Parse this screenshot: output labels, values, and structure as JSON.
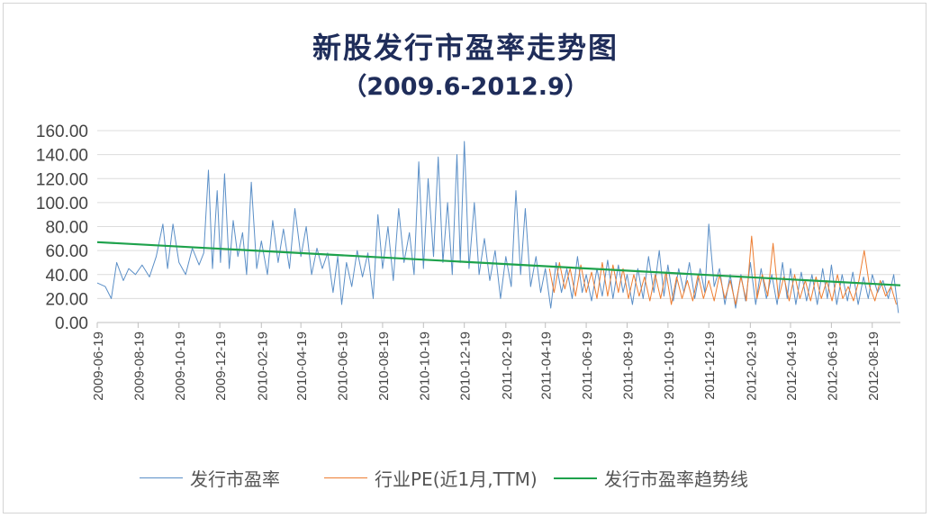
{
  "chart_data": {
    "type": "line",
    "title": "新股发行市盈率走势图",
    "subtitle": "（2009.6-2012.9）",
    "xlabel": "",
    "ylabel": "",
    "ylim": [
      0,
      160
    ],
    "yticks": [
      "0.00",
      "20.00",
      "40.00",
      "60.00",
      "80.00",
      "100.00",
      "120.00",
      "140.00",
      "160.00"
    ],
    "xlim": [
      "2009-06-19",
      "2012-09-30"
    ],
    "xticks": [
      "2009-06-19",
      "2009-08-19",
      "2009-10-19",
      "2009-12-19",
      "2010-02-19",
      "2010-04-19",
      "2010-06-19",
      "2010-08-19",
      "2010-10-19",
      "2010-12-19",
      "2011-02-19",
      "2011-04-19",
      "2011-06-19",
      "2011-08-19",
      "2011-10-19",
      "2011-12-19",
      "2012-02-19",
      "2012-04-19",
      "2012-06-19",
      "2012-08-19"
    ],
    "grid": "horizontal",
    "legend": "bottom",
    "colors": {
      "ipo_pe": "#5b8fc7",
      "industry_pe": "#ed7d31",
      "trend": "#1ea24c"
    },
    "series": [
      {
        "name": "发行市盈率",
        "note_style": "thin noisy line",
        "points": [
          [
            "2009-06-19",
            33
          ],
          [
            "2009-07-01",
            30
          ],
          [
            "2009-07-10",
            20
          ],
          [
            "2009-07-18",
            50
          ],
          [
            "2009-07-28",
            35
          ],
          [
            "2009-08-05",
            45
          ],
          [
            "2009-08-15",
            40
          ],
          [
            "2009-08-25",
            48
          ],
          [
            "2009-09-05",
            38
          ],
          [
            "2009-09-15",
            55
          ],
          [
            "2009-09-25",
            82
          ],
          [
            "2009-10-02",
            45
          ],
          [
            "2009-10-10",
            82
          ],
          [
            "2009-10-19",
            50
          ],
          [
            "2009-10-29",
            40
          ],
          [
            "2009-11-08",
            62
          ],
          [
            "2009-11-18",
            48
          ],
          [
            "2009-11-25",
            58
          ],
          [
            "2009-12-02",
            127
          ],
          [
            "2009-12-08",
            45
          ],
          [
            "2009-12-15",
            110
          ],
          [
            "2009-12-20",
            50
          ],
          [
            "2009-12-26",
            124
          ],
          [
            "2010-01-02",
            45
          ],
          [
            "2010-01-08",
            85
          ],
          [
            "2010-01-15",
            55
          ],
          [
            "2010-01-22",
            75
          ],
          [
            "2010-01-28",
            40
          ],
          [
            "2010-02-04",
            117
          ],
          [
            "2010-02-12",
            45
          ],
          [
            "2010-02-19",
            68
          ],
          [
            "2010-02-28",
            40
          ],
          [
            "2010-03-08",
            85
          ],
          [
            "2010-03-16",
            50
          ],
          [
            "2010-03-24",
            78
          ],
          [
            "2010-04-02",
            45
          ],
          [
            "2010-04-10",
            95
          ],
          [
            "2010-04-19",
            55
          ],
          [
            "2010-04-27",
            80
          ],
          [
            "2010-05-05",
            40
          ],
          [
            "2010-05-13",
            62
          ],
          [
            "2010-05-21",
            45
          ],
          [
            "2010-05-29",
            58
          ],
          [
            "2010-06-06",
            25
          ],
          [
            "2010-06-13",
            55
          ],
          [
            "2010-06-19",
            15
          ],
          [
            "2010-06-26",
            50
          ],
          [
            "2010-07-04",
            30
          ],
          [
            "2010-07-12",
            60
          ],
          [
            "2010-07-20",
            38
          ],
          [
            "2010-07-28",
            58
          ],
          [
            "2010-08-05",
            20
          ],
          [
            "2010-08-12",
            90
          ],
          [
            "2010-08-19",
            45
          ],
          [
            "2010-08-27",
            80
          ],
          [
            "2010-09-04",
            35
          ],
          [
            "2010-09-12",
            95
          ],
          [
            "2010-09-20",
            50
          ],
          [
            "2010-09-28",
            75
          ],
          [
            "2010-10-05",
            40
          ],
          [
            "2010-10-12",
            134
          ],
          [
            "2010-10-19",
            45
          ],
          [
            "2010-10-26",
            120
          ],
          [
            "2010-11-03",
            55
          ],
          [
            "2010-11-10",
            138
          ],
          [
            "2010-11-17",
            50
          ],
          [
            "2010-11-24",
            100
          ],
          [
            "2010-12-01",
            40
          ],
          [
            "2010-12-08",
            140
          ],
          [
            "2010-12-13",
            50
          ],
          [
            "2010-12-19",
            151
          ],
          [
            "2010-12-26",
            45
          ],
          [
            "2011-01-03",
            100
          ],
          [
            "2011-01-10",
            40
          ],
          [
            "2011-01-18",
            70
          ],
          [
            "2011-01-26",
            35
          ],
          [
            "2011-02-03",
            60
          ],
          [
            "2011-02-11",
            20
          ],
          [
            "2011-02-19",
            55
          ],
          [
            "2011-02-27",
            30
          ],
          [
            "2011-03-06",
            110
          ],
          [
            "2011-03-13",
            40
          ],
          [
            "2011-03-20",
            95
          ],
          [
            "2011-03-28",
            30
          ],
          [
            "2011-04-05",
            55
          ],
          [
            "2011-04-12",
            25
          ],
          [
            "2011-04-19",
            45
          ],
          [
            "2011-04-27",
            12
          ],
          [
            "2011-05-05",
            50
          ],
          [
            "2011-05-13",
            25
          ],
          [
            "2011-05-21",
            45
          ],
          [
            "2011-05-29",
            20
          ],
          [
            "2011-06-06",
            55
          ],
          [
            "2011-06-13",
            25
          ],
          [
            "2011-06-19",
            40
          ],
          [
            "2011-06-27",
            18
          ],
          [
            "2011-07-05",
            45
          ],
          [
            "2011-07-13",
            22
          ],
          [
            "2011-07-21",
            52
          ],
          [
            "2011-07-29",
            20
          ],
          [
            "2011-08-06",
            48
          ],
          [
            "2011-08-13",
            25
          ],
          [
            "2011-08-19",
            40
          ],
          [
            "2011-08-27",
            15
          ],
          [
            "2011-09-04",
            45
          ],
          [
            "2011-09-12",
            20
          ],
          [
            "2011-09-20",
            55
          ],
          [
            "2011-09-28",
            25
          ],
          [
            "2011-10-06",
            60
          ],
          [
            "2011-10-13",
            22
          ],
          [
            "2011-10-19",
            48
          ],
          [
            "2011-10-27",
            18
          ],
          [
            "2011-11-04",
            45
          ],
          [
            "2011-11-12",
            25
          ],
          [
            "2011-11-20",
            50
          ],
          [
            "2011-11-28",
            20
          ],
          [
            "2011-12-06",
            45
          ],
          [
            "2011-12-13",
            25
          ],
          [
            "2011-12-19",
            82
          ],
          [
            "2011-12-27",
            30
          ],
          [
            "2012-01-04",
            45
          ],
          [
            "2012-01-12",
            15
          ],
          [
            "2012-01-20",
            40
          ],
          [
            "2012-01-28",
            12
          ],
          [
            "2012-02-05",
            40
          ],
          [
            "2012-02-12",
            18
          ],
          [
            "2012-02-19",
            50
          ],
          [
            "2012-02-27",
            15
          ],
          [
            "2012-03-06",
            45
          ],
          [
            "2012-03-14",
            20
          ],
          [
            "2012-03-22",
            40
          ],
          [
            "2012-03-30",
            15
          ],
          [
            "2012-04-07",
            50
          ],
          [
            "2012-04-14",
            20
          ],
          [
            "2012-04-19",
            45
          ],
          [
            "2012-04-27",
            15
          ],
          [
            "2012-05-05",
            42
          ],
          [
            "2012-05-13",
            18
          ],
          [
            "2012-05-21",
            40
          ],
          [
            "2012-05-29",
            15
          ],
          [
            "2012-06-06",
            45
          ],
          [
            "2012-06-13",
            20
          ],
          [
            "2012-06-19",
            48
          ],
          [
            "2012-06-27",
            15
          ],
          [
            "2012-07-05",
            40
          ],
          [
            "2012-07-13",
            18
          ],
          [
            "2012-07-21",
            42
          ],
          [
            "2012-07-29",
            15
          ],
          [
            "2012-08-06",
            38
          ],
          [
            "2012-08-13",
            20
          ],
          [
            "2012-08-19",
            40
          ],
          [
            "2012-08-27",
            25
          ],
          [
            "2012-09-04",
            35
          ],
          [
            "2012-09-12",
            20
          ],
          [
            "2012-09-20",
            40
          ],
          [
            "2012-09-27",
            8
          ]
        ]
      },
      {
        "name": "行业PE(近1月,TTM)",
        "note_style": "thin noisy line",
        "points": [
          [
            "2011-04-25",
            45
          ],
          [
            "2011-05-02",
            25
          ],
          [
            "2011-05-10",
            50
          ],
          [
            "2011-05-18",
            28
          ],
          [
            "2011-05-26",
            45
          ],
          [
            "2011-06-03",
            22
          ],
          [
            "2011-06-11",
            48
          ],
          [
            "2011-06-19",
            25
          ],
          [
            "2011-06-27",
            42
          ],
          [
            "2011-07-05",
            20
          ],
          [
            "2011-07-13",
            50
          ],
          [
            "2011-07-21",
            22
          ],
          [
            "2011-07-29",
            48
          ],
          [
            "2011-08-06",
            25
          ],
          [
            "2011-08-13",
            45
          ],
          [
            "2011-08-21",
            20
          ],
          [
            "2011-08-29",
            40
          ],
          [
            "2011-09-06",
            22
          ],
          [
            "2011-09-14",
            38
          ],
          [
            "2011-09-22",
            18
          ],
          [
            "2011-09-30",
            40
          ],
          [
            "2011-10-08",
            20
          ],
          [
            "2011-10-16",
            42
          ],
          [
            "2011-10-24",
            15
          ],
          [
            "2011-11-01",
            38
          ],
          [
            "2011-11-09",
            20
          ],
          [
            "2011-11-17",
            35
          ],
          [
            "2011-11-25",
            18
          ],
          [
            "2011-12-03",
            40
          ],
          [
            "2011-12-11",
            20
          ],
          [
            "2011-12-19",
            35
          ],
          [
            "2011-12-27",
            18
          ],
          [
            "2012-01-04",
            40
          ],
          [
            "2012-01-12",
            20
          ],
          [
            "2012-01-20",
            35
          ],
          [
            "2012-01-28",
            15
          ],
          [
            "2012-02-05",
            38
          ],
          [
            "2012-02-13",
            18
          ],
          [
            "2012-02-21",
            72
          ],
          [
            "2012-02-29",
            20
          ],
          [
            "2012-03-08",
            40
          ],
          [
            "2012-03-16",
            22
          ],
          [
            "2012-03-24",
            66
          ],
          [
            "2012-04-01",
            20
          ],
          [
            "2012-04-09",
            38
          ],
          [
            "2012-04-17",
            18
          ],
          [
            "2012-04-25",
            40
          ],
          [
            "2012-05-03",
            20
          ],
          [
            "2012-05-11",
            35
          ],
          [
            "2012-05-19",
            18
          ],
          [
            "2012-05-27",
            38
          ],
          [
            "2012-06-04",
            20
          ],
          [
            "2012-06-12",
            35
          ],
          [
            "2012-06-20",
            18
          ],
          [
            "2012-06-28",
            40
          ],
          [
            "2012-07-06",
            20
          ],
          [
            "2012-07-14",
            30
          ],
          [
            "2012-07-22",
            18
          ],
          [
            "2012-07-30",
            35
          ],
          [
            "2012-08-07",
            60
          ],
          [
            "2012-08-15",
            30
          ],
          [
            "2012-08-23",
            18
          ],
          [
            "2012-08-31",
            35
          ],
          [
            "2012-09-08",
            22
          ],
          [
            "2012-09-16",
            30
          ],
          [
            "2012-09-24",
            15
          ]
        ]
      },
      {
        "name": "发行市盈率趋势线",
        "points": [
          [
            "2009-06-19",
            67
          ],
          [
            "2012-09-30",
            31
          ]
        ]
      }
    ]
  }
}
